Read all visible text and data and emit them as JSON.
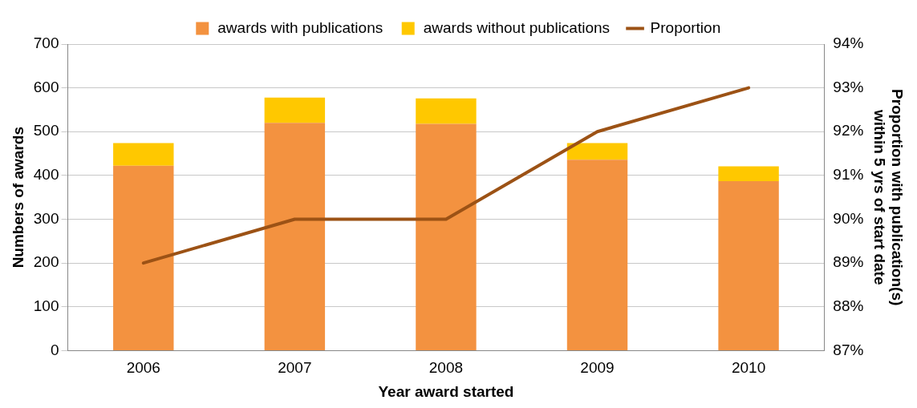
{
  "chart_data": {
    "type": "bar",
    "stacked": true,
    "categories": [
      "2006",
      "2007",
      "2008",
      "2009",
      "2010"
    ],
    "xlabel": "Year award started",
    "ylabel": "Numbers of awards",
    "y2label": "Proportion with publication(s)\nwithin 5 yrs of start date",
    "ylim": [
      0,
      700
    ],
    "yticks": [
      0,
      100,
      200,
      300,
      400,
      500,
      600,
      700
    ],
    "y2lim": [
      87,
      94
    ],
    "y2ticks": [
      {
        "value": 87,
        "label": "87%"
      },
      {
        "value": 88,
        "label": "88%"
      },
      {
        "value": 89,
        "label": "89%"
      },
      {
        "value": 90,
        "label": "90%"
      },
      {
        "value": 91,
        "label": "91%"
      },
      {
        "value": 92,
        "label": "92%"
      },
      {
        "value": 93,
        "label": "93%"
      },
      {
        "value": 94,
        "label": "94%"
      }
    ],
    "grid": "y",
    "legend": "top",
    "marker": "none",
    "line_style": "solid",
    "series": [
      {
        "name": "awards with publications",
        "color": "#f39240",
        "values": [
          422,
          520,
          518,
          436,
          387
        ]
      },
      {
        "name": "awards without publications",
        "color": "#ffc800",
        "values": [
          52,
          58,
          58,
          38,
          34
        ]
      },
      {
        "name": "Proportion",
        "type": "line",
        "axis": "y2",
        "color": "#9c5215",
        "values": [
          89,
          90,
          90,
          92,
          93
        ]
      }
    ]
  }
}
